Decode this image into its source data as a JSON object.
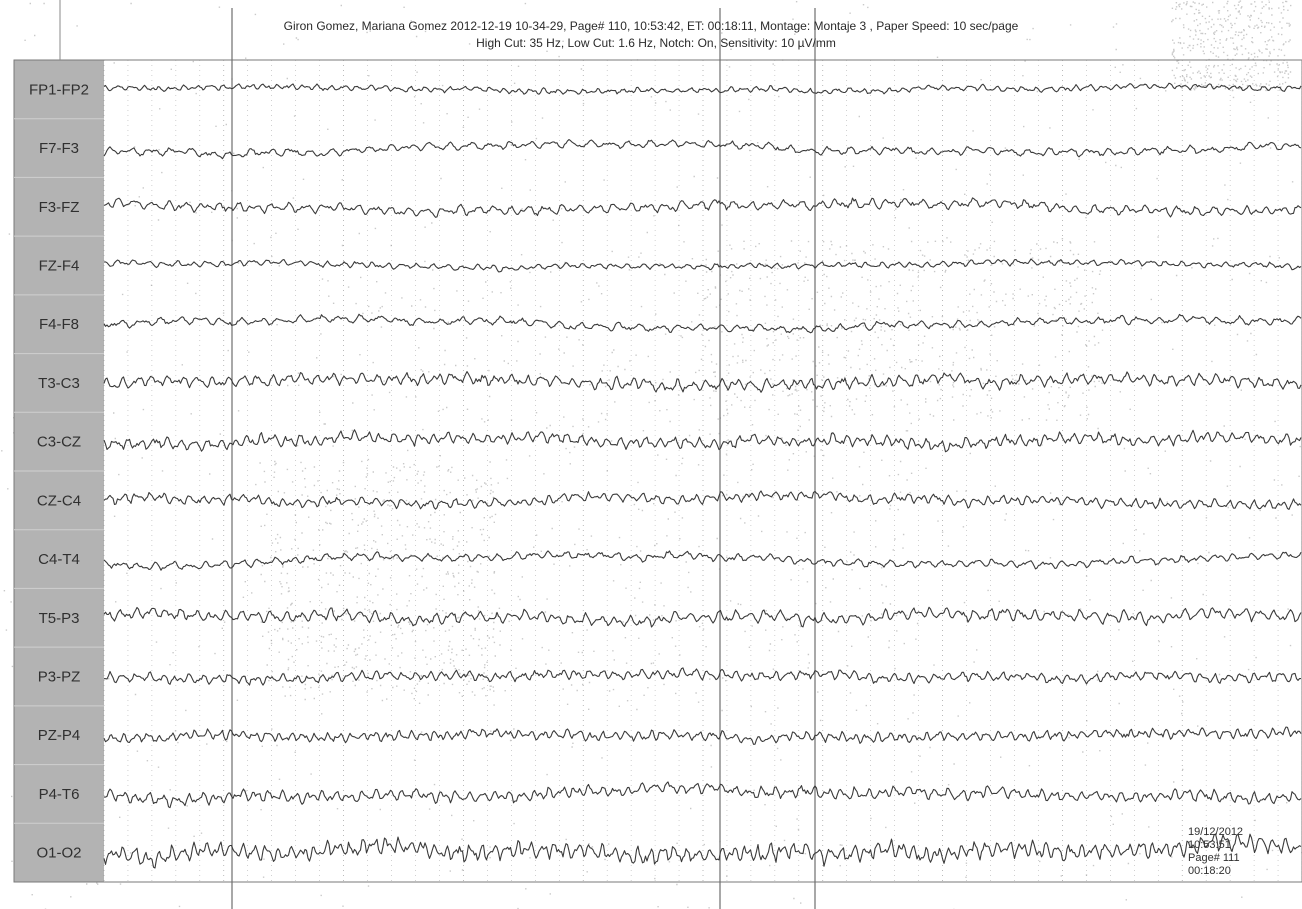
{
  "header": {
    "line1": "Giron Gomez, Mariana Gomez  2012-12-19 10-34-29, Page# 110, 10:53:42, ET: 00:18:11, Montage: Montaje 3 , Paper Speed: 10 sec/page",
    "line2": "High Cut: 35 Hz, Low Cut: 1.6 Hz, Notch: On, Sensitivity: 10 µV/mm"
  },
  "colors": {
    "trace": "#3a3a3a",
    "label_panel": "#b3b3b3",
    "grid": "#8c8c8c",
    "noise": "#c9c9c9"
  },
  "chart_data": {
    "type": "line",
    "title": "",
    "xlabel": "",
    "ylabel": "",
    "duration_sec": 10,
    "channels": [
      {
        "name": "FP1-FP2",
        "amplitude": 3,
        "freq": 9,
        "slow": 1.5
      },
      {
        "name": "F7-F3",
        "amplitude": 4,
        "freq": 6,
        "slow": 5
      },
      {
        "name": "F3-FZ",
        "amplitude": 5,
        "freq": 7,
        "slow": 3
      },
      {
        "name": "FZ-F4",
        "amplitude": 3,
        "freq": 8,
        "slow": 2
      },
      {
        "name": "F4-F8",
        "amplitude": 4,
        "freq": 6,
        "slow": 4
      },
      {
        "name": "T3-C3",
        "amplitude": 6,
        "freq": 8,
        "slow": 3
      },
      {
        "name": "C3-CZ",
        "amplitude": 6,
        "freq": 9,
        "slow": 3
      },
      {
        "name": "CZ-C4",
        "amplitude": 5,
        "freq": 9,
        "slow": 3
      },
      {
        "name": "C4-T4",
        "amplitude": 4,
        "freq": 7,
        "slow": 5
      },
      {
        "name": "T5-P3",
        "amplitude": 6,
        "freq": 8,
        "slow": 3
      },
      {
        "name": "P3-PZ",
        "amplitude": 5,
        "freq": 9,
        "slow": 2
      },
      {
        "name": "PZ-P4",
        "amplitude": 5,
        "freq": 10,
        "slow": 2
      },
      {
        "name": "P4-T6",
        "amplitude": 6,
        "freq": 9,
        "slow": 3
      },
      {
        "name": "O1-O2",
        "amplitude": 9,
        "freq": 10,
        "slow": 3
      }
    ]
  },
  "stamp": {
    "date": "19/12/2012",
    "time": "10:53:51",
    "page": "Page# 111",
    "elapsed": "00:18:20"
  }
}
